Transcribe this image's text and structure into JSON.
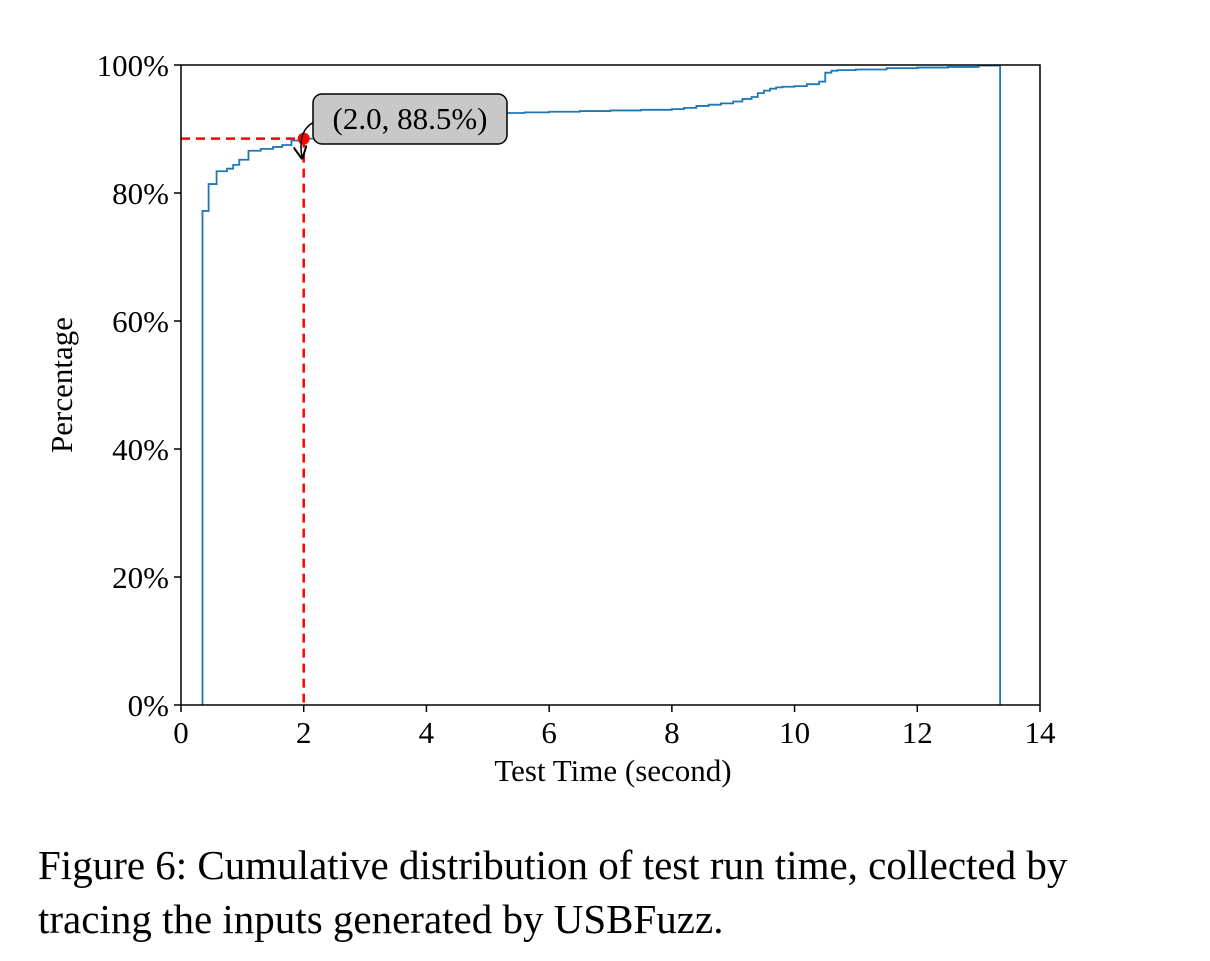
{
  "chart_data": {
    "type": "line",
    "step": true,
    "xlabel": "Test Time (second)",
    "ylabel": "Percentage",
    "xlim": [
      0,
      14
    ],
    "ylim": [
      0,
      100
    ],
    "x_ticks": [
      0,
      2,
      4,
      6,
      8,
      10,
      12,
      14
    ],
    "x_tick_labels": [
      "0",
      "2",
      "4",
      "6",
      "8",
      "10",
      "12",
      "14"
    ],
    "y_ticks": [
      0,
      20,
      40,
      60,
      80,
      100
    ],
    "y_tick_labels": [
      "0%",
      "20%",
      "40%",
      "60%",
      "80%",
      "100%"
    ],
    "grid": false,
    "series": [
      {
        "color": "#1f77b4",
        "x": [
          0.35,
          0.35,
          0.45,
          0.58,
          0.75,
          0.85,
          0.95,
          1.1,
          1.3,
          1.5,
          1.65,
          1.8,
          2.0,
          2.3,
          2.5,
          2.65,
          2.9,
          3.1,
          3.4,
          3.6,
          3.8,
          4.0,
          4.3,
          4.6,
          5.0,
          5.3,
          5.6,
          6.0,
          6.5,
          7.0,
          7.5,
          8.0,
          8.2,
          8.4,
          8.6,
          8.8,
          9.0,
          9.15,
          9.3,
          9.4,
          9.5,
          9.6,
          9.7,
          9.8,
          10.0,
          10.2,
          10.4,
          10.5,
          10.6,
          10.7,
          11.0,
          11.5,
          12.0,
          12.5,
          13.0,
          13.35,
          13.35
        ],
        "y": [
          0,
          77.2,
          81.4,
          83.4,
          83.8,
          84.4,
          85.2,
          86.6,
          86.9,
          87.2,
          87.5,
          88.2,
          88.5,
          89.0,
          89.5,
          90.0,
          90.3,
          91.0,
          91.4,
          91.6,
          91.8,
          92.0,
          92.1,
          92.2,
          92.4,
          92.5,
          92.6,
          92.7,
          92.8,
          92.9,
          93.0,
          93.1,
          93.3,
          93.6,
          93.8,
          94.0,
          94.3,
          94.7,
          95.0,
          95.6,
          96.0,
          96.3,
          96.5,
          96.6,
          96.7,
          97.0,
          97.4,
          98.8,
          99.1,
          99.2,
          99.3,
          99.5,
          99.6,
          99.7,
          99.9,
          100,
          0
        ]
      }
    ],
    "highlight": {
      "x": 2.0,
      "y": 88.5,
      "color": "#ff0000"
    },
    "annotation": "(2.0, 88.5%)"
  },
  "caption": "Figure 6: Cumulative distribution of test run time, collected by tracing the inputs generated by USBFuzz."
}
